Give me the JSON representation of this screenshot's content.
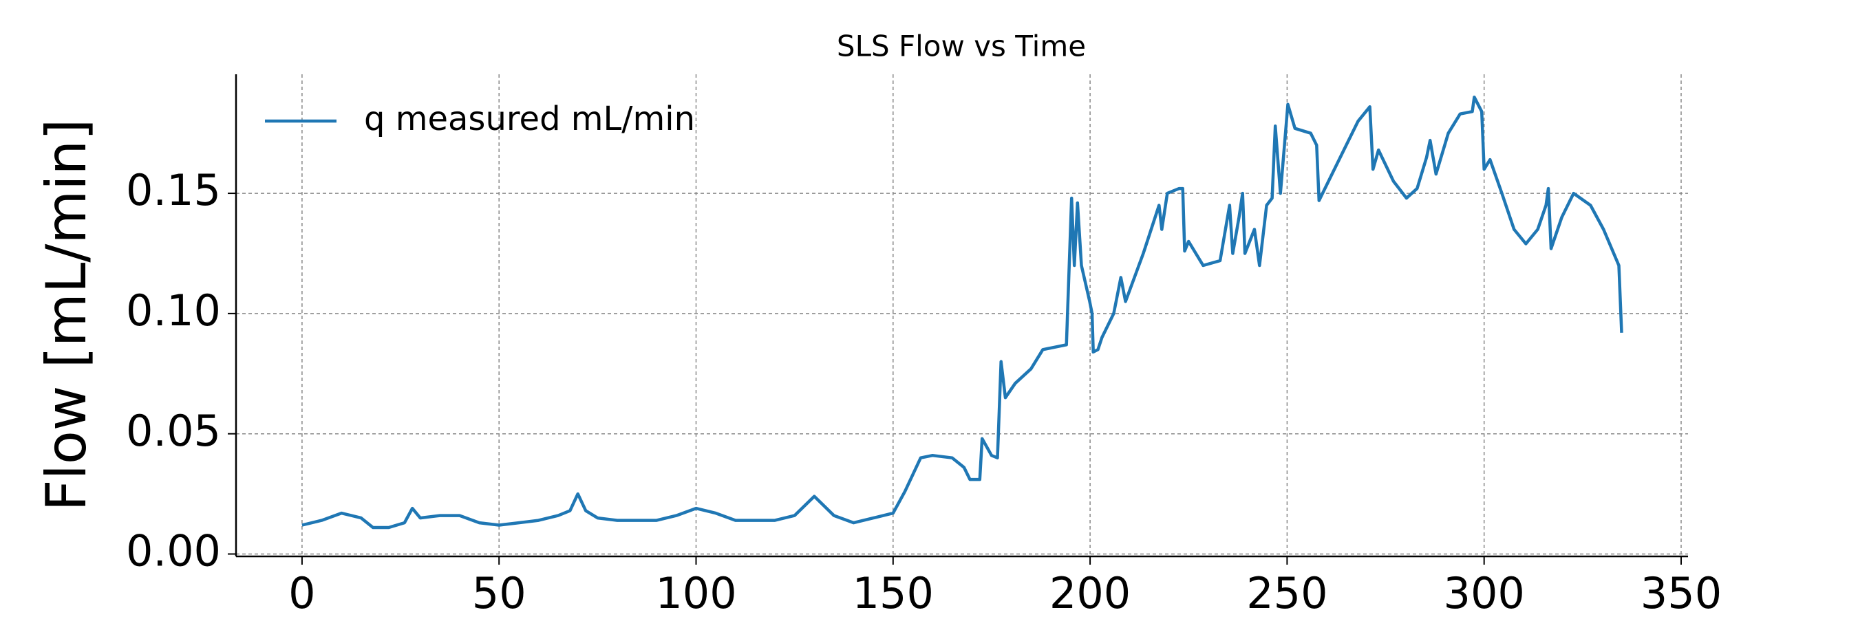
{
  "chart_data": {
    "type": "line",
    "title": "SLS Flow vs Time",
    "ylabel": "Flow [mL/min]",
    "x": [
      0,
      5,
      10,
      15,
      18,
      22,
      26,
      28,
      30,
      35,
      40,
      45,
      50,
      55,
      60,
      65,
      68,
      70,
      72,
      75,
      80,
      90,
      95,
      100,
      105,
      110,
      120,
      125,
      130,
      135,
      140,
      145,
      150,
      153,
      157,
      160,
      165,
      168,
      169.5,
      172,
      172.6,
      175,
      176.5,
      177.4,
      178.5,
      181,
      185,
      188,
      191,
      194,
      195.3,
      196,
      196.8,
      197.8,
      199.9,
      200.5,
      200.8,
      202,
      203,
      206,
      207.8,
      209,
      213.5,
      217.5,
      218.2,
      219.6,
      222.6,
      223.5,
      224,
      225,
      228.7,
      233,
      235.4,
      236.2,
      237.8,
      238.7,
      239.3,
      241.7,
      243,
      244.8,
      246.2,
      247,
      248.3,
      250.2,
      252,
      256,
      257.5,
      258.1,
      260.5,
      265,
      268,
      271,
      271.8,
      273.2,
      277,
      280.3,
      283,
      285.4,
      286.3,
      287.8,
      290.9,
      293.9,
      297,
      297.5,
      299.4,
      300,
      301.5,
      304.5,
      307.6,
      310.6,
      313.6,
      315.7,
      316.3,
      317,
      319.7,
      322.7,
      327,
      330.3,
      334.2,
      334.9
    ],
    "series": [
      {
        "name": "q measured mL/min",
        "color": "#1f77b4",
        "values": [
          0.012,
          0.014,
          0.017,
          0.015,
          0.011,
          0.011,
          0.013,
          0.019,
          0.015,
          0.016,
          0.016,
          0.013,
          0.012,
          0.013,
          0.014,
          0.016,
          0.018,
          0.025,
          0.018,
          0.015,
          0.014,
          0.014,
          0.016,
          0.019,
          0.017,
          0.014,
          0.014,
          0.016,
          0.024,
          0.016,
          0.013,
          0.015,
          0.017,
          0.026,
          0.04,
          0.041,
          0.04,
          0.036,
          0.031,
          0.031,
          0.048,
          0.041,
          0.04,
          0.08,
          0.065,
          0.071,
          0.077,
          0.085,
          0.086,
          0.087,
          0.148,
          0.12,
          0.146,
          0.12,
          0.105,
          0.1,
          0.084,
          0.085,
          0.09,
          0.1,
          0.115,
          0.105,
          0.125,
          0.145,
          0.135,
          0.15,
          0.152,
          0.152,
          0.126,
          0.13,
          0.12,
          0.122,
          0.145,
          0.125,
          0.14,
          0.15,
          0.125,
          0.135,
          0.12,
          0.145,
          0.148,
          0.178,
          0.15,
          0.187,
          0.177,
          0.175,
          0.17,
          0.147,
          0.155,
          0.17,
          0.18,
          0.186,
          0.16,
          0.168,
          0.155,
          0.148,
          0.152,
          0.165,
          0.172,
          0.158,
          0.175,
          0.183,
          0.184,
          0.19,
          0.184,
          0.16,
          0.164,
          0.15,
          0.135,
          0.129,
          0.135,
          0.145,
          0.152,
          0.127,
          0.14,
          0.15,
          0.145,
          0.135,
          0.12,
          0.092
        ]
      }
    ],
    "xlim": [
      -16.75,
      351.75
    ],
    "ylim": [
      -0.001,
      0.1995
    ],
    "xticks": [
      0,
      50,
      100,
      150,
      200,
      250,
      300,
      350
    ],
    "yticks": [
      {
        "value": 0,
        "label": "0.00"
      },
      {
        "value": 0.05,
        "label": "0.05"
      },
      {
        "value": 0.1,
        "label": "0.10"
      },
      {
        "value": 0.15,
        "label": "0.15"
      }
    ],
    "grid": true,
    "legend": "upper left"
  }
}
